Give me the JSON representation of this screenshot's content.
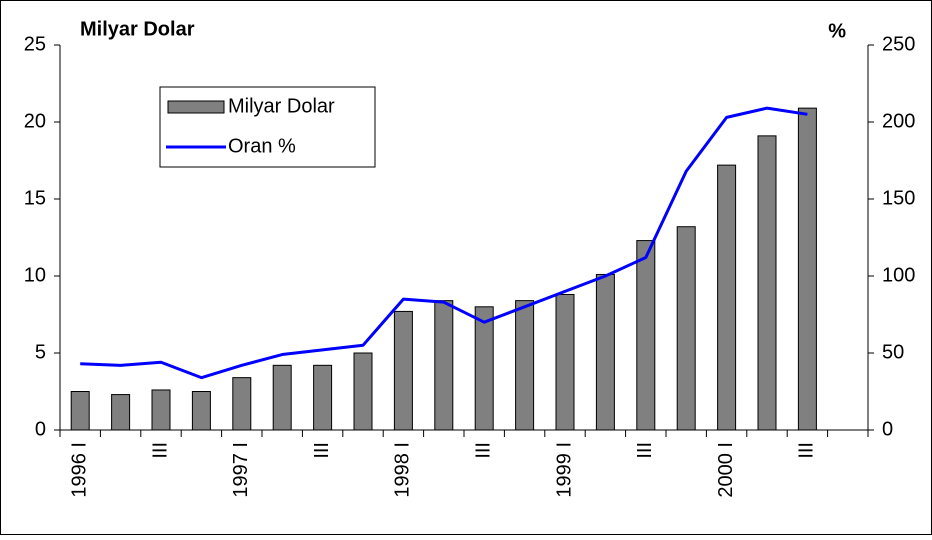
{
  "chart_data": {
    "type": "bar",
    "ylabel": "Milyar Dolar",
    "y2label": "%",
    "categories": [
      "1996 I",
      null,
      "III",
      null,
      "1997 I",
      null,
      "III",
      null,
      "1998 I",
      null,
      "III",
      null,
      "1999 I",
      null,
      "III",
      null,
      "2000 I",
      null,
      "III",
      null
    ],
    "series": [
      {
        "name": "Milyar Dolar",
        "type": "bar",
        "color": "#808080",
        "values": [
          2.5,
          2.3,
          2.6,
          2.5,
          3.4,
          4.2,
          4.2,
          5.0,
          7.7,
          8.4,
          8.0,
          8.4,
          8.8,
          10.1,
          12.3,
          13.2,
          17.2,
          19.1,
          20.9,
          null
        ]
      },
      {
        "name": "Oran %",
        "type": "line",
        "axis": "y2",
        "color": "#0000ff",
        "values": [
          43,
          42,
          44,
          34,
          42,
          49,
          52,
          55,
          85,
          83,
          70,
          80,
          90,
          100,
          112,
          168,
          203,
          209,
          205,
          null
        ]
      }
    ],
    "ylim": [
      0,
      25
    ],
    "yticks": [
      0,
      5,
      10,
      15,
      20,
      25
    ],
    "y2lim": [
      0,
      250
    ],
    "y2ticks": [
      0,
      50,
      100,
      150,
      200,
      250
    ],
    "grid": false,
    "legend": "upper left"
  }
}
